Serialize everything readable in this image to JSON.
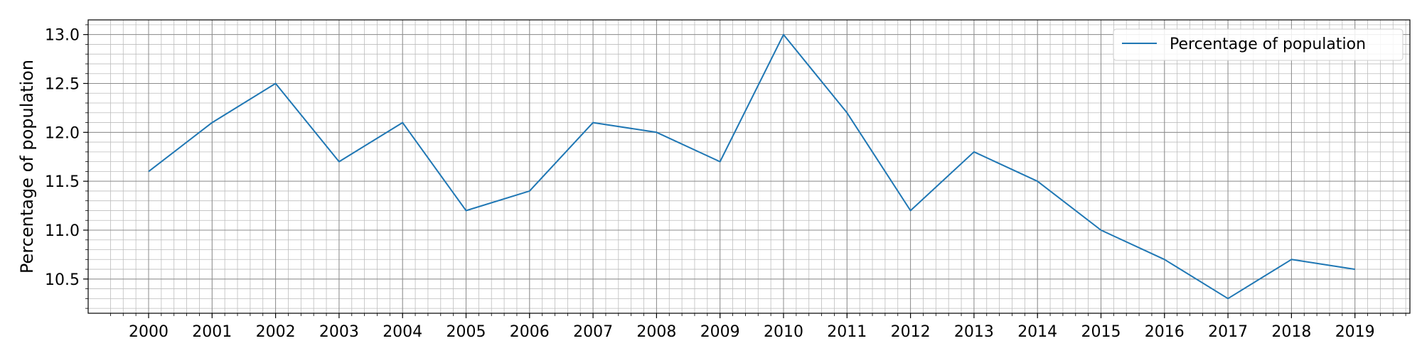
{
  "chart_data": {
    "type": "line",
    "x": [
      "2000",
      "2001",
      "2002",
      "2003",
      "2004",
      "2005",
      "2006",
      "2007",
      "2008",
      "2009",
      "2010",
      "2011",
      "2012",
      "2013",
      "2014",
      "2015",
      "2016",
      "2017",
      "2018",
      "2019"
    ],
    "series": [
      {
        "name": "Percentage of population",
        "values": [
          11.6,
          12.1,
          12.5,
          11.7,
          12.1,
          11.2,
          11.4,
          12.1,
          12.0,
          11.7,
          13.0,
          12.2,
          11.2,
          11.8,
          11.5,
          11.0,
          10.7,
          10.3,
          10.7,
          10.6
        ],
        "color": "#1f77b4"
      }
    ],
    "title": "",
    "xlabel": "",
    "ylabel": "Percentage of population",
    "ylim": [
      10.15,
      13.15
    ],
    "yticks": [
      "10.5",
      "11.0",
      "11.5",
      "12.0",
      "12.5",
      "13.0"
    ],
    "grid": true,
    "minor_grid": true,
    "legend_position": "top-right"
  }
}
